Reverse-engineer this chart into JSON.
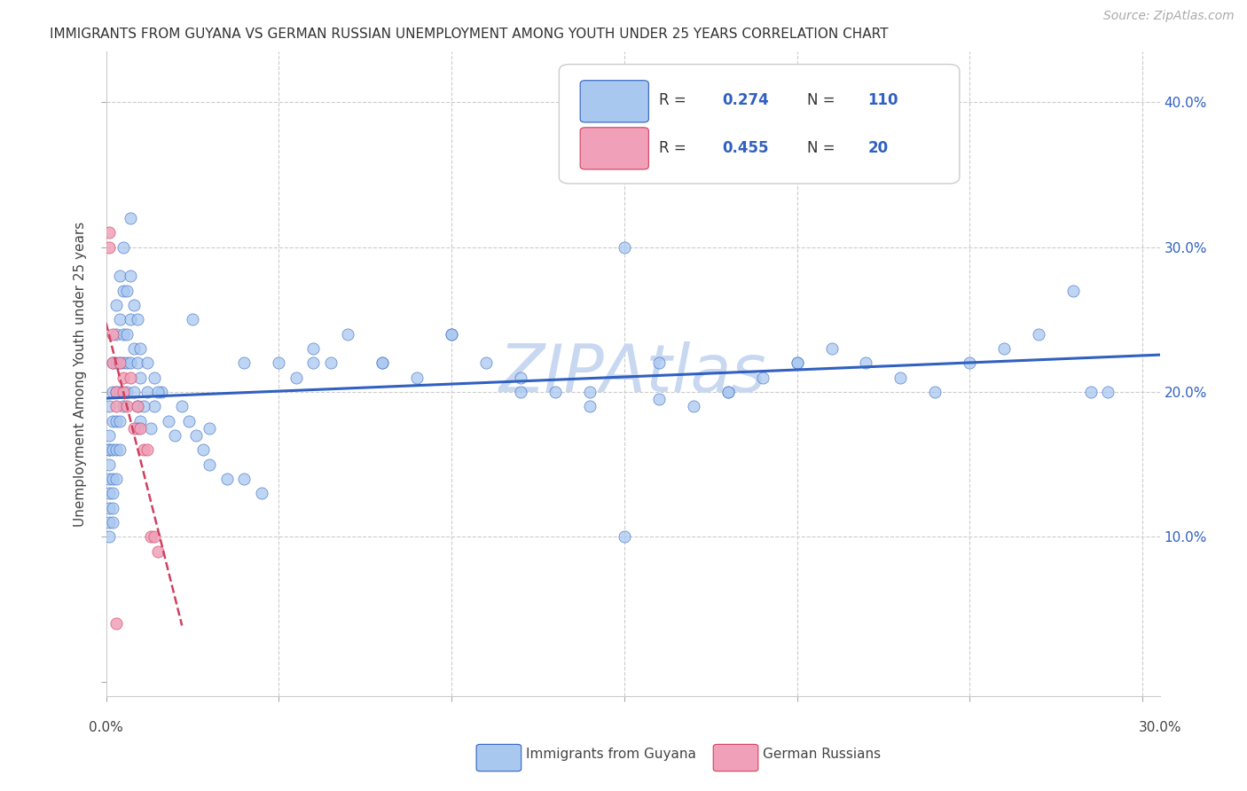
{
  "title": "IMMIGRANTS FROM GUYANA VS GERMAN RUSSIAN UNEMPLOYMENT AMONG YOUTH UNDER 25 YEARS CORRELATION CHART",
  "source": "Source: ZipAtlas.com",
  "ylabel": "Unemployment Among Youth under 25 years",
  "xlim": [
    0.0,
    0.305
  ],
  "ylim": [
    -0.01,
    0.435
  ],
  "color_blue": "#A8C8F0",
  "color_pink": "#F0A0B8",
  "color_blue_line": "#3060C0",
  "color_pink_line": "#D04060",
  "watermark": "ZIPAtlas",
  "watermark_color": "#C8D8F0",
  "legend_label1": "Immigrants from Guyana",
  "legend_label2": "German Russians",
  "blue_x": [
    0.001,
    0.001,
    0.001,
    0.001,
    0.001,
    0.001,
    0.001,
    0.001,
    0.001,
    0.001,
    0.002,
    0.002,
    0.002,
    0.002,
    0.002,
    0.002,
    0.002,
    0.002,
    0.003,
    0.003,
    0.003,
    0.003,
    0.003,
    0.003,
    0.003,
    0.004,
    0.004,
    0.004,
    0.004,
    0.004,
    0.004,
    0.005,
    0.005,
    0.005,
    0.005,
    0.005,
    0.006,
    0.006,
    0.006,
    0.006,
    0.007,
    0.007,
    0.007,
    0.007,
    0.008,
    0.008,
    0.008,
    0.009,
    0.009,
    0.009,
    0.01,
    0.01,
    0.01,
    0.012,
    0.012,
    0.014,
    0.014,
    0.016,
    0.018,
    0.02,
    0.022,
    0.024,
    0.026,
    0.028,
    0.03,
    0.035,
    0.04,
    0.045,
    0.05,
    0.055,
    0.06,
    0.065,
    0.07,
    0.08,
    0.09,
    0.1,
    0.11,
    0.12,
    0.13,
    0.14,
    0.15,
    0.16,
    0.17,
    0.18,
    0.19,
    0.2,
    0.21,
    0.22,
    0.23,
    0.24,
    0.25,
    0.26,
    0.27,
    0.28,
    0.285,
    0.29,
    0.15,
    0.2,
    0.18,
    0.16,
    0.14,
    0.12,
    0.1,
    0.08,
    0.06,
    0.04,
    0.03,
    0.025,
    0.015,
    0.013,
    0.011,
    0.009
  ],
  "blue_y": [
    0.17,
    0.19,
    0.16,
    0.14,
    0.15,
    0.13,
    0.12,
    0.11,
    0.1,
    0.16,
    0.2,
    0.18,
    0.22,
    0.16,
    0.14,
    0.12,
    0.11,
    0.13,
    0.24,
    0.26,
    0.22,
    0.2,
    0.18,
    0.16,
    0.14,
    0.28,
    0.25,
    0.22,
    0.2,
    0.18,
    0.16,
    0.3,
    0.27,
    0.24,
    0.22,
    0.19,
    0.27,
    0.24,
    0.22,
    0.2,
    0.32,
    0.28,
    0.25,
    0.22,
    0.26,
    0.23,
    0.2,
    0.25,
    0.22,
    0.19,
    0.23,
    0.21,
    0.18,
    0.22,
    0.2,
    0.21,
    0.19,
    0.2,
    0.18,
    0.17,
    0.19,
    0.18,
    0.17,
    0.16,
    0.15,
    0.14,
    0.14,
    0.13,
    0.22,
    0.21,
    0.23,
    0.22,
    0.24,
    0.22,
    0.21,
    0.24,
    0.22,
    0.21,
    0.2,
    0.2,
    0.1,
    0.22,
    0.19,
    0.2,
    0.21,
    0.22,
    0.23,
    0.22,
    0.21,
    0.2,
    0.22,
    0.23,
    0.24,
    0.27,
    0.2,
    0.2,
    0.3,
    0.22,
    0.2,
    0.195,
    0.19,
    0.2,
    0.24,
    0.22,
    0.22,
    0.22,
    0.175,
    0.25,
    0.2,
    0.175,
    0.19,
    0.175
  ],
  "pink_x": [
    0.001,
    0.001,
    0.002,
    0.002,
    0.003,
    0.003,
    0.004,
    0.005,
    0.005,
    0.006,
    0.007,
    0.008,
    0.009,
    0.01,
    0.011,
    0.012,
    0.013,
    0.014,
    0.015,
    0.003
  ],
  "pink_y": [
    0.31,
    0.3,
    0.24,
    0.22,
    0.2,
    0.19,
    0.22,
    0.2,
    0.21,
    0.19,
    0.21,
    0.175,
    0.19,
    0.175,
    0.16,
    0.16,
    0.1,
    0.1,
    0.09,
    0.04
  ]
}
